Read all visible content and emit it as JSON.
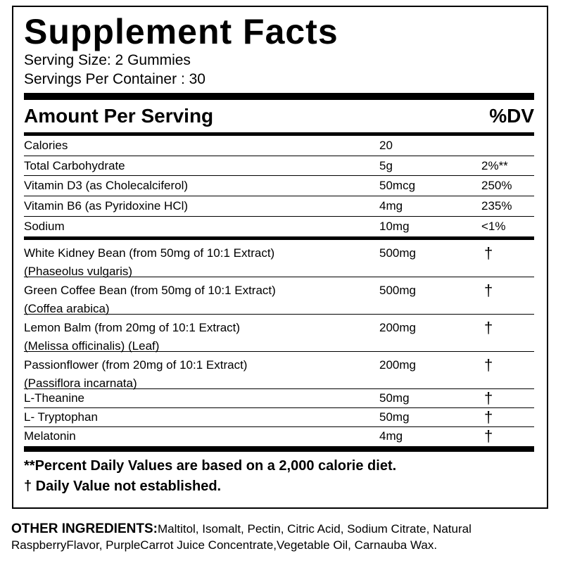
{
  "title": "Supplement Facts",
  "serving_size": "Serving Size: 2 Gummies",
  "servings_per_container": "Servings Per Container : 30",
  "header": {
    "amount": "Amount Per Serving",
    "dv": "%DV"
  },
  "nutrients": [
    {
      "name": "Calories",
      "amount": "20"
    },
    {
      "name": "Total Carbohydrate",
      "amount": "5g",
      "dv": "2%**"
    },
    {
      "name": "Vitamin D3 (as Cholecalciferol)",
      "amount": "50mcg",
      "dv": "250%"
    },
    {
      "name": "Vitamin B6 (as Pyridoxine HCl)",
      "amount": "4mg",
      "dv": "235%"
    },
    {
      "name": "Sodium",
      "amount": "10mg",
      "dv": "<1%"
    }
  ],
  "ingredients": [
    {
      "name": [
        "White Kidney Bean (from 50mg of 10:1 Extract)",
        "(Phaseolus vulgaris)"
      ],
      "amount": "500mg",
      "dv": "†"
    },
    {
      "name": [
        "Green Coffee Bean (from 50mg of 10:1 Extract)",
        "(Coffea arabica)"
      ],
      "amount": "500mg",
      "dv": "†"
    },
    {
      "name": [
        "Lemon Balm (from 20mg of 10:1 Extract)",
        "(Melissa officinalis) (Leaf)"
      ],
      "amount": "200mg",
      "dv": "†"
    },
    {
      "name": [
        "Passionflower (from 20mg of 10:1 Extract)",
        "(Passiflora incarnata)"
      ],
      "amount": "200mg",
      "dv": "†"
    },
    {
      "name": [
        "L-Theanine"
      ],
      "amount": "50mg",
      "dv": "†"
    },
    {
      "name": [
        "L- Tryptophan"
      ],
      "amount": "50mg",
      "dv": "†"
    },
    {
      "name": [
        "Melatonin"
      ],
      "amount": "4mg",
      "dv": "†"
    }
  ],
  "footnotes": [
    "**Percent Daily Values are based on a 2,000 calorie diet.",
    "† Daily Value not established."
  ],
  "other_ingredients": {
    "label": "OTHER INGREDIENTS:",
    "text": "Maltitol, Isomalt, Pectin, Citric Acid, Sodium Citrate, Natural RaspberryFlavor, PurpleCarrot Juice Concentrate,Vegetable Oil, Carnauba Wax."
  }
}
